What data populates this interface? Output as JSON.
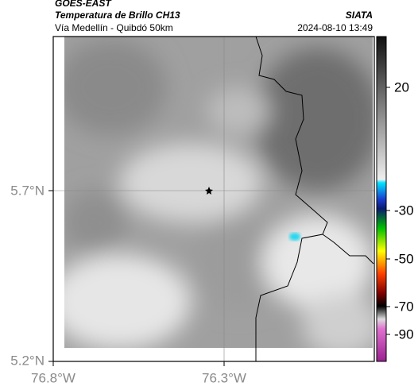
{
  "header": {
    "title": "GOES-EAST",
    "subtitle": "Temperatura de Brillo CH13",
    "region": "Vía Medellín - Quibdó 50km",
    "source": "SIATA",
    "datetime": "2024-08-10 13:49"
  },
  "map": {
    "lat_labels": [
      "5.7°N",
      "5.2°N"
    ],
    "lon_labels": [
      "76.8°W",
      "76.3°W"
    ]
  },
  "colorbar": {
    "ticks": [
      20,
      -30,
      -50,
      -70,
      -90
    ]
  }
}
